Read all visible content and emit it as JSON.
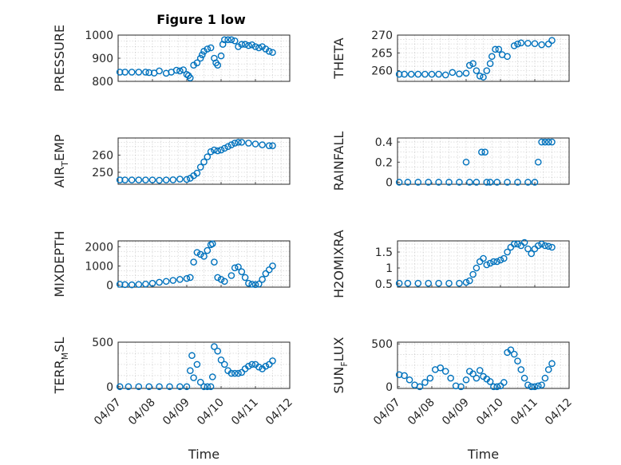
{
  "figure": {
    "title": "Figure 1 low"
  },
  "colors": {
    "marker": "#0072BD",
    "axes": "#262626",
    "background": "#ffffff"
  },
  "chart_data": [
    {
      "type": "scatter",
      "id": "pressure",
      "ylabel": "PRESSURE",
      "xlabel": "",
      "title": "Figure 1 low",
      "ylim": [
        800,
        1000
      ],
      "yticks": [
        800,
        900,
        1000
      ],
      "xlim": [
        0,
        5
      ],
      "xtick_labels": [],
      "grid": true,
      "marker": "o",
      "x": [
        0.05,
        0.2,
        0.4,
        0.6,
        0.8,
        0.9,
        1.05,
        1.2,
        1.4,
        1.55,
        1.7,
        1.8,
        1.9,
        2.0,
        2.05,
        2.1,
        2.2,
        2.3,
        2.4,
        2.45,
        2.5,
        2.6,
        2.7,
        2.8,
        2.85,
        2.9,
        3.0,
        3.05,
        3.1,
        3.2,
        3.3,
        3.4,
        3.5,
        3.6,
        3.7,
        3.8,
        3.9,
        4.0,
        4.1,
        4.2,
        4.3,
        4.4,
        4.5
      ],
      "y": [
        840,
        840,
        840,
        840,
        840,
        838,
        836,
        845,
        835,
        840,
        848,
        845,
        850,
        830,
        825,
        815,
        870,
        880,
        900,
        915,
        930,
        940,
        945,
        900,
        880,
        870,
        910,
        960,
        980,
        980,
        980,
        975,
        950,
        960,
        960,
        955,
        958,
        950,
        945,
        950,
        940,
        930,
        925
      ]
    },
    {
      "type": "scatter",
      "id": "theta",
      "ylabel": "THETA",
      "xlabel": "",
      "ylim": [
        257,
        270
      ],
      "yticks": [
        260,
        265,
        270
      ],
      "xlim": [
        0,
        5
      ],
      "xtick_labels": [],
      "grid": true,
      "marker": "o",
      "x": [
        0.05,
        0.2,
        0.4,
        0.6,
        0.8,
        1.0,
        1.2,
        1.4,
        1.6,
        1.8,
        2.0,
        2.1,
        2.2,
        2.3,
        2.4,
        2.5,
        2.6,
        2.7,
        2.75,
        2.85,
        2.95,
        3.05,
        3.2,
        3.4,
        3.5,
        3.6,
        3.8,
        4.0,
        4.2,
        4.4,
        4.5
      ],
      "y": [
        259,
        259,
        259,
        259,
        259,
        259,
        259,
        258.8,
        259.5,
        259.1,
        259.3,
        261.5,
        262,
        260,
        258.5,
        258.2,
        260,
        262,
        264,
        266,
        266,
        264.5,
        264,
        267,
        267.5,
        267.8,
        267.7,
        267.6,
        267.3,
        267.5,
        268.5
      ]
    },
    {
      "type": "scatter",
      "id": "air-temp",
      "ylabel": "AIR_TEMP",
      "xlabel": "",
      "ylim": [
        243,
        270
      ],
      "yticks": [
        250,
        260
      ],
      "xlim": [
        0,
        5
      ],
      "xtick_labels": [],
      "grid": true,
      "marker": "o",
      "x": [
        0.05,
        0.2,
        0.4,
        0.6,
        0.8,
        1.0,
        1.2,
        1.4,
        1.6,
        1.8,
        2.0,
        2.1,
        2.2,
        2.3,
        2.4,
        2.5,
        2.6,
        2.7,
        2.8,
        2.9,
        3.0,
        3.1,
        3.2,
        3.3,
        3.4,
        3.5,
        3.6,
        3.8,
        4.0,
        4.2,
        4.4,
        4.5
      ],
      "y": [
        245.5,
        245.5,
        245.5,
        245.5,
        245.5,
        245.5,
        245.3,
        245.5,
        245.6,
        246,
        245.8,
        246.5,
        248,
        249.5,
        253,
        256,
        259,
        262,
        263,
        262.5,
        263,
        264,
        265,
        266,
        267,
        267.5,
        267.5,
        267,
        266.5,
        266,
        265.5,
        265.5
      ]
    },
    {
      "type": "scatter",
      "id": "rainfall",
      "ylabel": "RAINFALL",
      "xlabel": "",
      "ylim": [
        -0.02,
        0.44
      ],
      "yticks": [
        0,
        0.2,
        0.4
      ],
      "xlim": [
        0,
        5
      ],
      "xtick_labels": [],
      "grid": true,
      "marker": "o",
      "x": [
        0.05,
        0.3,
        0.6,
        0.9,
        1.2,
        1.5,
        1.8,
        2.0,
        2.1,
        2.3,
        2.45,
        2.55,
        2.6,
        2.7,
        2.9,
        3.2,
        3.5,
        3.8,
        4.0,
        4.1,
        4.2,
        4.3,
        4.4,
        4.5
      ],
      "y": [
        0,
        0,
        0,
        0,
        0,
        0,
        0,
        0.2,
        0,
        0,
        0.3,
        0.3,
        0,
        0,
        0,
        0,
        0,
        0,
        0,
        0.2,
        0.4,
        0.4,
        0.4,
        0.4
      ]
    },
    {
      "type": "scatter",
      "id": "mixdepth",
      "ylabel": "MIXDEPTH",
      "xlabel": "",
      "ylim": [
        -100,
        2300
      ],
      "yticks": [
        0,
        1000,
        2000
      ],
      "xlim": [
        0,
        5
      ],
      "xtick_labels": [],
      "grid": true,
      "marker": "o",
      "x": [
        0.05,
        0.2,
        0.4,
        0.6,
        0.8,
        1.0,
        1.2,
        1.4,
        1.6,
        1.8,
        2.0,
        2.1,
        2.2,
        2.3,
        2.4,
        2.5,
        2.6,
        2.7,
        2.75,
        2.8,
        2.9,
        3.0,
        3.1,
        3.3,
        3.4,
        3.5,
        3.6,
        3.7,
        3.8,
        3.9,
        4.0,
        4.1,
        4.2,
        4.3,
        4.4,
        4.5
      ],
      "y": [
        50,
        30,
        20,
        40,
        60,
        100,
        150,
        200,
        250,
        300,
        350,
        400,
        1200,
        1700,
        1600,
        1500,
        1800,
        2100,
        2150,
        1200,
        400,
        300,
        200,
        500,
        900,
        950,
        700,
        400,
        100,
        50,
        30,
        60,
        300,
        600,
        800,
        1000
      ]
    },
    {
      "type": "scatter",
      "id": "h2omixra",
      "ylabel": "H2OMIXRA",
      "xlabel": "",
      "ylim": [
        0.4,
        1.85
      ],
      "yticks": [
        0.5,
        1,
        1.5
      ],
      "xlim": [
        0,
        5
      ],
      "xtick_labels": [],
      "grid": true,
      "marker": "o",
      "x": [
        0.05,
        0.3,
        0.6,
        0.9,
        1.2,
        1.5,
        1.8,
        2.0,
        2.1,
        2.2,
        2.3,
        2.4,
        2.5,
        2.6,
        2.7,
        2.8,
        2.9,
        3.0,
        3.1,
        3.2,
        3.3,
        3.4,
        3.5,
        3.6,
        3.7,
        3.8,
        3.9,
        4.0,
        4.1,
        4.2,
        4.3,
        4.4,
        4.5
      ],
      "y": [
        0.52,
        0.52,
        0.52,
        0.52,
        0.52,
        0.52,
        0.52,
        0.55,
        0.6,
        0.8,
        1.0,
        1.2,
        1.3,
        1.1,
        1.15,
        1.2,
        1.2,
        1.25,
        1.3,
        1.5,
        1.65,
        1.75,
        1.75,
        1.7,
        1.8,
        1.6,
        1.45,
        1.6,
        1.7,
        1.75,
        1.7,
        1.68,
        1.65
      ]
    },
    {
      "type": "scatter",
      "id": "terr-msl",
      "ylabel": "TERR_MSL",
      "xlabel": "Time",
      "ylim": [
        -20,
        500
      ],
      "yticks": [
        0,
        500
      ],
      "xlim": [
        0,
        5
      ],
      "xtick_labels": [
        "04/07",
        "04/08",
        "04/09",
        "04/10",
        "04/11",
        "04/12"
      ],
      "grid": true,
      "marker": "o",
      "x": [
        0.05,
        0.3,
        0.6,
        0.9,
        1.2,
        1.5,
        1.8,
        2.0,
        2.1,
        2.15,
        2.2,
        2.3,
        2.4,
        2.5,
        2.6,
        2.7,
        2.75,
        2.8,
        2.9,
        3.0,
        3.1,
        3.2,
        3.3,
        3.4,
        3.5,
        3.6,
        3.7,
        3.8,
        3.9,
        4.0,
        4.1,
        4.2,
        4.3,
        4.4,
        4.5
      ],
      "y": [
        0,
        0,
        0,
        0,
        0,
        0,
        0,
        0,
        180,
        350,
        100,
        250,
        50,
        0,
        0,
        0,
        110,
        450,
        400,
        300,
        250,
        180,
        150,
        150,
        150,
        160,
        200,
        230,
        250,
        250,
        220,
        200,
        230,
        250,
        290
      ]
    },
    {
      "type": "scatter",
      "id": "sun-flux",
      "ylabel": "SUN_FLUX",
      "xlabel": "Time",
      "ylim": [
        -20,
        520
      ],
      "yticks": [
        0,
        500
      ],
      "xlim": [
        0,
        5
      ],
      "xtick_labels": [
        "04/07",
        "04/08",
        "04/09",
        "04/10",
        "04/11",
        "04/12"
      ],
      "grid": true,
      "marker": "o",
      "x": [
        0.05,
        0.2,
        0.35,
        0.5,
        0.65,
        0.8,
        0.95,
        1.1,
        1.25,
        1.4,
        1.55,
        1.7,
        1.85,
        2.0,
        2.1,
        2.2,
        2.3,
        2.4,
        2.5,
        2.6,
        2.7,
        2.8,
        2.9,
        3.0,
        3.1,
        3.2,
        3.3,
        3.4,
        3.5,
        3.6,
        3.7,
        3.8,
        3.9,
        4.0,
        4.1,
        4.2,
        4.3,
        4.4,
        4.5
      ],
      "y": [
        140,
        130,
        80,
        20,
        0,
        50,
        100,
        200,
        220,
        180,
        100,
        10,
        0,
        80,
        180,
        150,
        100,
        190,
        120,
        90,
        60,
        0,
        0,
        10,
        50,
        400,
        430,
        380,
        300,
        200,
        100,
        20,
        0,
        0,
        10,
        20,
        100,
        200,
        270
      ]
    }
  ]
}
